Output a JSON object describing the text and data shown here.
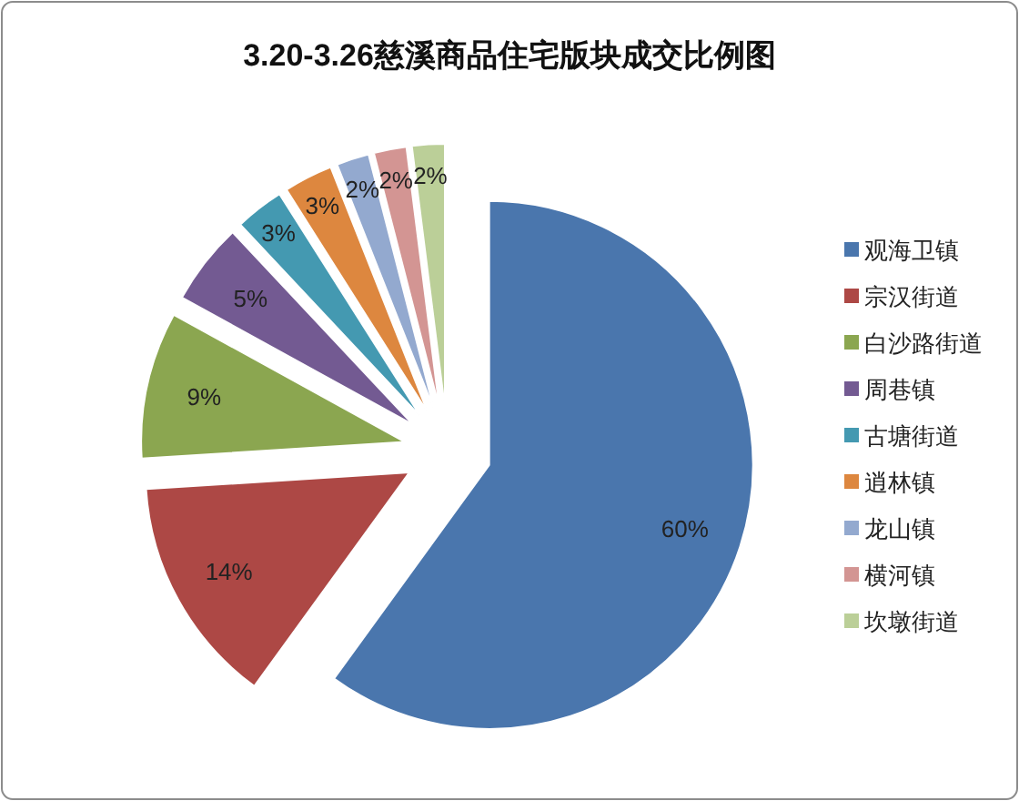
{
  "chart_data": {
    "type": "pie",
    "title": "3.20-3.26慈溪商品住宅版块成交比例图",
    "categories": [
      "观海卫镇",
      "宗汉街道",
      "白沙路街道",
      "周巷镇",
      "古塘街道",
      "逍林镇",
      "龙山镇",
      "横河镇",
      "坎墩街道"
    ],
    "values": [
      60,
      14,
      9,
      5,
      3,
      3,
      2,
      2,
      2
    ],
    "value_labels": [
      "60%",
      "14%",
      "9%",
      "5%",
      "3%",
      "3%",
      "2%",
      "2%",
      "2%"
    ],
    "colors": [
      "#4a76ad",
      "#ad4845",
      "#8ba650",
      "#735a92",
      "#4499b1",
      "#dd873f",
      "#93a9cf",
      "#d39593",
      "#bbcf98"
    ],
    "legend": "right"
  }
}
